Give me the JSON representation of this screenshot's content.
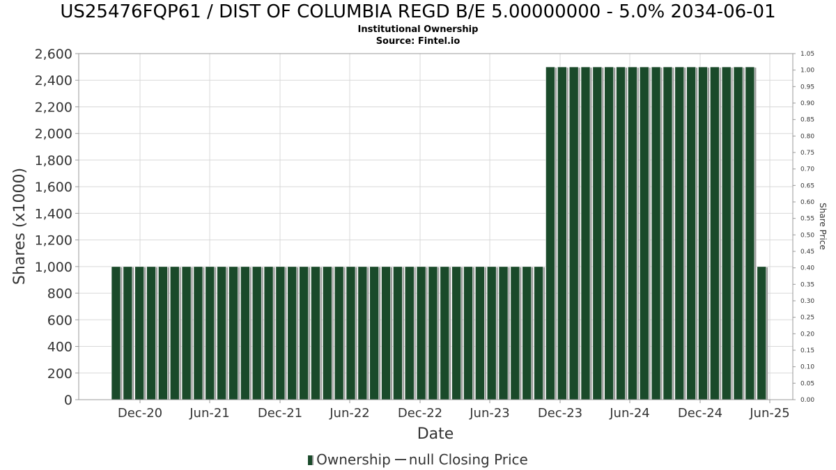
{
  "chart_data": {
    "type": "bar",
    "title": "US25476FQP61 / DIST OF COLUMBIA REGD B/E 5.00000000 - 5.0% 2034-06-01",
    "subtitle": "Institutional Ownership",
    "source": "Source: Fintel.io",
    "xlabel": "Date",
    "ylabel": "Shares (x1000)",
    "y2label": "Share Price",
    "ylim": [
      0,
      2600
    ],
    "y_ticks": [
      "0",
      "200",
      "400",
      "600",
      "800",
      "1,000",
      "1,200",
      "1,400",
      "1,600",
      "1,800",
      "2,000",
      "2,200",
      "2,400",
      "2,600"
    ],
    "y2lim": [
      0,
      1.05
    ],
    "y2_ticks": [
      "0.00",
      "0.05",
      "0.10",
      "0.15",
      "0.20",
      "0.25",
      "0.30",
      "0.35",
      "0.40",
      "0.45",
      "0.50",
      "0.55",
      "0.60",
      "0.65",
      "0.70",
      "0.75",
      "0.80",
      "0.85",
      "0.90",
      "0.95",
      "1.00",
      "1.05"
    ],
    "x_ticks": [
      "Dec-20",
      "Jun-21",
      "Dec-21",
      "Jun-22",
      "Dec-22",
      "Jun-23",
      "Dec-23",
      "Jun-24",
      "Dec-24",
      "Jun-25"
    ],
    "grid": true,
    "legend_position": "bottom",
    "colors": {
      "bar": "#1a4a2a",
      "bar_shadow": "#9a9a9a",
      "grid": "#d8d8d8"
    },
    "series": [
      {
        "name": "Ownership",
        "values": [
          1000,
          1000,
          1000,
          1000,
          1000,
          1000,
          1000,
          1000,
          1000,
          1000,
          1000,
          1000,
          1000,
          1000,
          1000,
          1000,
          1000,
          1000,
          1000,
          1000,
          1000,
          1000,
          1000,
          1000,
          1000,
          1000,
          1000,
          1000,
          1000,
          1000,
          1000,
          1000,
          1000,
          1000,
          1000,
          1000,
          1000,
          2500,
          2500,
          2500,
          2500,
          2500,
          2500,
          2500,
          2500,
          2500,
          2500,
          2500,
          2500,
          2500,
          2500,
          2500,
          2500,
          2500,
          2500,
          1000
        ]
      }
    ],
    "legend": [
      "Ownership",
      "null Closing Price"
    ]
  }
}
